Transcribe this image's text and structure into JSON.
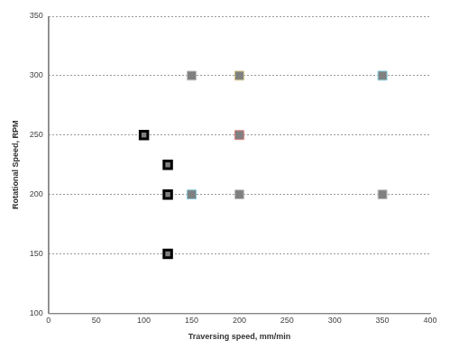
{
  "chart_data": {
    "type": "scatter",
    "x_label": "Traversing speed, mm/min",
    "y_label": "Rotational Speed, RPM",
    "series": [
      {
        "color": "#000000",
        "marker": "square",
        "x": [
          100,
          125,
          125,
          125
        ],
        "values": [
          250,
          225,
          200,
          150
        ]
      },
      {
        "color": "#c0c0c0",
        "marker": "square",
        "colors": [
          "#c0c0c0",
          "#d4c48a",
          "#7fc7d9",
          "#e08080",
          "#7fc7d9",
          "#c0c0c0",
          "#c0c0c0"
        ],
        "x": [
          150,
          200,
          350,
          200,
          150,
          200,
          350
        ],
        "values": [
          300,
          300,
          300,
          250,
          200,
          200,
          200
        ]
      }
    ],
    "xlim": [
      0,
      400
    ],
    "xticks": [
      0,
      50,
      100,
      150,
      200,
      250,
      300,
      350,
      400
    ],
    "ylim": [
      100,
      350
    ],
    "yticks": [
      100,
      150,
      200,
      250,
      300,
      350
    ],
    "grid": "y"
  }
}
